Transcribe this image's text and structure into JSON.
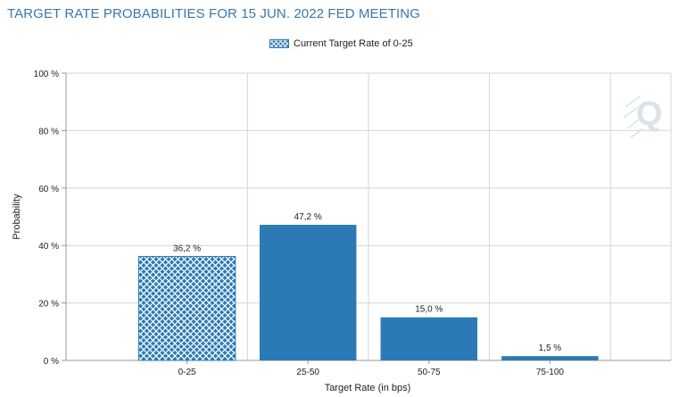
{
  "title": "TARGET RATE PROBABILITIES FOR 15 JUN. 2022 FED MEETING",
  "legend": {
    "label": "Current Target Rate of 0-25"
  },
  "colors": {
    "bar": "#2b7ab5",
    "current": "#2b7ab5",
    "grid": "#d4d4d4",
    "title": "#3a78a8"
  },
  "chart_data": {
    "type": "bar",
    "categories": [
      "0-25",
      "25-50",
      "50-75",
      "75-100"
    ],
    "values": [
      36.2,
      47.2,
      15.0,
      1.5
    ],
    "value_labels": [
      "36,2 %",
      "47,2 %",
      "15,0 %",
      "1,5 %"
    ],
    "current_category": "0-25",
    "xlabel": "Target Rate (in bps)",
    "ylabel": "Probability",
    "ylim": [
      0,
      100
    ],
    "yticks": [
      0,
      20,
      40,
      60,
      80,
      100
    ],
    "ytick_labels": [
      "0 %",
      "20 %",
      "40 %",
      "60 %",
      "80 %",
      "100 %"
    ],
    "grid": true,
    "legend_position": "top-center"
  }
}
